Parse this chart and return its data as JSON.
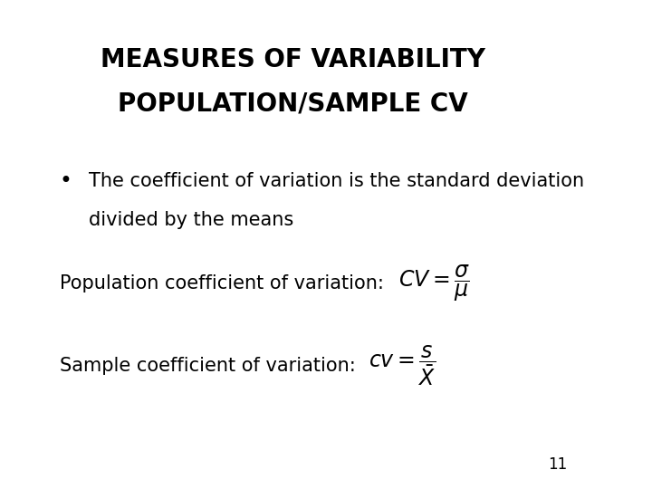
{
  "title_line1": "MEASURES OF VARIABILITY",
  "title_line2": "POPULATION/SAMPLE CV",
  "title_fontsize": 20,
  "background_color": "#ffffff",
  "text_color": "#000000",
  "bullet_text_line1": "The coefficient of variation is the standard deviation",
  "bullet_text_line2": "divided by the means",
  "bullet_fontsize": 15,
  "pop_label": "Population coefficient of variation:",
  "pop_label_fontsize": 15,
  "pop_formula_fontsize": 17,
  "sample_label": "Sample coefficient of variation:",
  "sample_label_fontsize": 15,
  "sample_formula_fontsize": 17,
  "page_number": "11",
  "page_number_fontsize": 12
}
